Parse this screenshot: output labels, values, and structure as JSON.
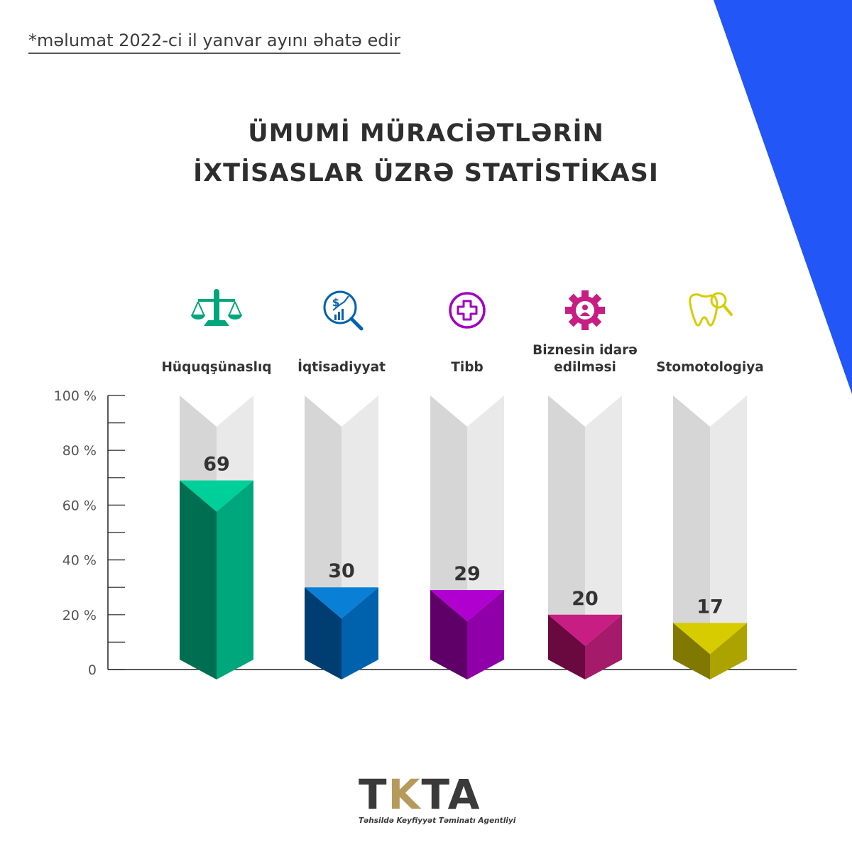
{
  "note": "*məlumat 2022-ci il yanvar ayını əhatə edir",
  "title": {
    "line1": "ÜMUMİ MÜRACİƏTLƏRİN",
    "line2": "İXTİSASLAR ÜZRƏ STATİSTİKASI"
  },
  "colors": {
    "accent_blue": "#2356f6"
  },
  "chart_data": {
    "type": "bar",
    "ylim": [
      0,
      100
    ],
    "yticks": [
      0,
      20,
      40,
      60,
      80,
      100
    ],
    "ytick_labels": [
      "0",
      "20 %",
      "40 %",
      "60 %",
      "80 %",
      "100 %"
    ],
    "categories": [
      {
        "label": [
          "Hüquqşünaslıq"
        ],
        "icon": "scales-of-justice-icon",
        "color_dark": "#006f51",
        "color_light": "#00a67c",
        "color_top": "#00cf9a"
      },
      {
        "label": [
          "İqtisadiyyat"
        ],
        "icon": "dollar-growth-magnifier-icon",
        "color_dark": "#003d70",
        "color_light": "#0062ad",
        "color_top": "#0a7fd6"
      },
      {
        "label": [
          "Tibb"
        ],
        "icon": "medical-cross-icon",
        "color_dark": "#5f0068",
        "color_light": "#8f00a8",
        "color_top": "#b000d0"
      },
      {
        "label": [
          "Biznesin idarə",
          "edilməsi"
        ],
        "icon": "business-gear-person-icon",
        "color_dark": "#6a0840",
        "color_light": "#a51b6a",
        "color_top": "#c81d82"
      },
      {
        "label": [
          "Stomotologiya"
        ],
        "icon": "tooth-magnifier-icon",
        "color_dark": "#807800",
        "color_light": "#ada300",
        "color_top": "#d6cc00"
      }
    ],
    "values": [
      69,
      30,
      29,
      20,
      17
    ]
  },
  "logo": {
    "mark_part1": "T",
    "mark_part2": "K",
    "mark_part3": "TA",
    "subtitle": "Təhsildə Keyfiyyət Təminatı Agentliyi"
  }
}
